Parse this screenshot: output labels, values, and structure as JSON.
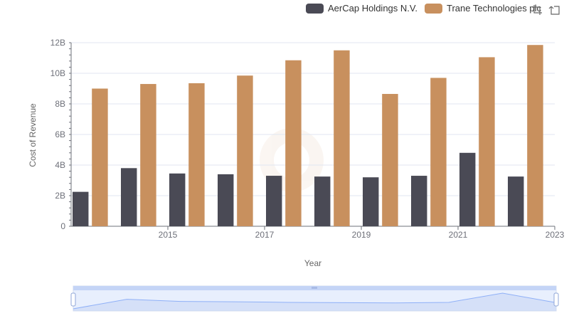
{
  "legend": {
    "items": [
      {
        "label": "AerCap Holdings N.V.",
        "color": "#4a4a55"
      },
      {
        "label": "Trane Technologies plc",
        "color": "#c8905e"
      }
    ]
  },
  "toolbox": {
    "icons": [
      "zoom-icon",
      "zoom-reset-icon"
    ]
  },
  "chart_data": {
    "type": "bar",
    "categories": [
      "2014",
      "2015",
      "2016",
      "2017",
      "2018",
      "2019",
      "2020",
      "2021",
      "2022",
      "2023"
    ],
    "x_tick_labels": [
      "2015",
      "2017",
      "2019",
      "2021",
      "2023"
    ],
    "series": [
      {
        "name": "AerCap Holdings N.V.",
        "color": "#4a4a55",
        "values": [
          2.25,
          3.8,
          3.45,
          3.4,
          3.3,
          3.25,
          3.2,
          3.3,
          4.8,
          3.25
        ]
      },
      {
        "name": "Trane Technologies plc",
        "color": "#c8905e",
        "values": [
          9.0,
          9.3,
          9.35,
          9.85,
          10.85,
          11.5,
          8.65,
          9.7,
          11.05,
          11.85
        ]
      }
    ],
    "xlabel": "Year",
    "ylabel": "Cost of Revenue",
    "ylim": [
      0,
      12
    ],
    "y_ticks": [
      0,
      2,
      4,
      6,
      8,
      10,
      12
    ],
    "y_tick_labels": [
      "0",
      "2B",
      "4B",
      "6B",
      "8B",
      "10B",
      "12B"
    ],
    "grid": true,
    "legend_position": "top-right",
    "datazoom": {
      "visible": true
    }
  }
}
